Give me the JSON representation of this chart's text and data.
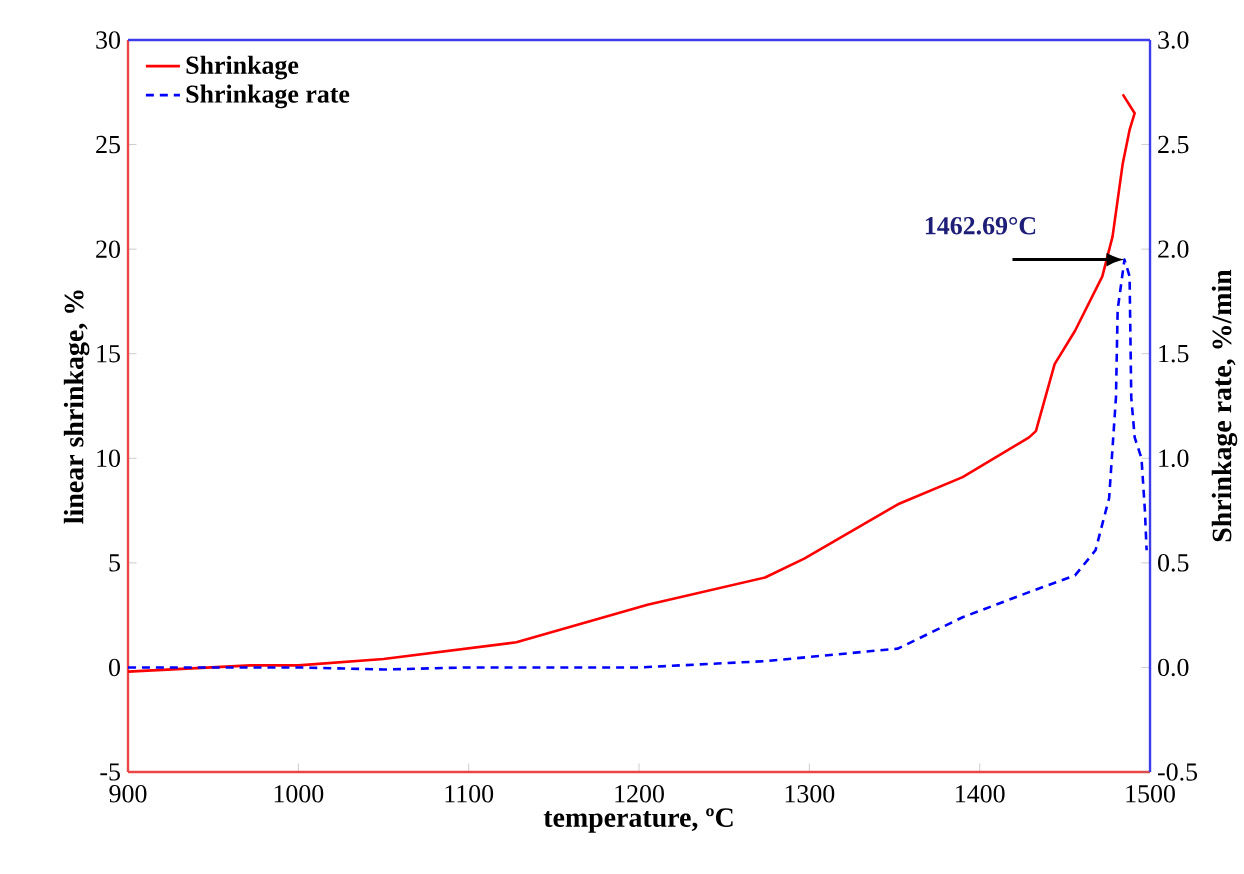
{
  "chart_data": {
    "type": "line",
    "xlabel": "temperature, ºC",
    "ylabel": "linear shrinkage, %",
    "y2label": "Shrinkage rate, %/min",
    "xlim": [
      900,
      1500
    ],
    "xticks": [
      900,
      1000,
      1100,
      1200,
      1300,
      1400,
      1500
    ],
    "ylim": [
      -5,
      30
    ],
    "yticks": [
      -5,
      0,
      5,
      10,
      15,
      20,
      25,
      30
    ],
    "y2lim": [
      -0.5,
      3.0
    ],
    "y2ticks": [
      {
        "value": -0.5,
        "label": "-0.5"
      },
      {
        "value": 0,
        "label": "0.0"
      },
      {
        "value": 0.5,
        "label": "0.5"
      },
      {
        "value": 1,
        "label": "1.0"
      },
      {
        "value": 1.5,
        "label": "1.5"
      },
      {
        "value": 2,
        "label": "2.0"
      },
      {
        "value": 2.5,
        "label": "2.5"
      },
      {
        "value": 3,
        "label": "3.0"
      }
    ],
    "legend": "top left",
    "grid": false,
    "marker": "none",
    "annotations": [
      {
        "text": "1462.69°C",
        "x": 1485,
        "y": 19.5
      }
    ],
    "series": [
      {
        "name": "Shrinkage",
        "color": "#ff0000",
        "line_style": "solid",
        "x": [
          900,
          972,
          1000,
          1050,
          1128,
          1205,
          1274,
          1297,
          1352,
          1390,
          1429,
          1433,
          1444,
          1456,
          1472,
          1478,
          1484,
          1488,
          1491,
          1484
        ],
        "values": [
          -0.2,
          0.1,
          0.1,
          0.4,
          1.2,
          3.0,
          4.3,
          5.2,
          7.8,
          9.1,
          11.0,
          11.3,
          14.5,
          16.1,
          18.7,
          20.6,
          24.1,
          25.7,
          26.5,
          27.4
        ]
      },
      {
        "name": "Shrinkage rate",
        "color": "#0000ff",
        "line_style": "dashed",
        "axis": "y2",
        "x": [
          900,
          1000,
          1050,
          1100,
          1200,
          1274,
          1352,
          1390,
          1429,
          1456,
          1468,
          1476,
          1480,
          1481,
          1485,
          1488,
          1489,
          1491,
          1495,
          1497,
          1498
        ],
        "values": [
          0.0,
          0.0,
          -0.01,
          0.0,
          0.0,
          0.03,
          0.09,
          0.24,
          0.36,
          0.44,
          0.56,
          0.81,
          1.29,
          1.71,
          1.95,
          1.87,
          1.29,
          1.1,
          1.0,
          0.75,
          0.56
        ]
      }
    ]
  }
}
